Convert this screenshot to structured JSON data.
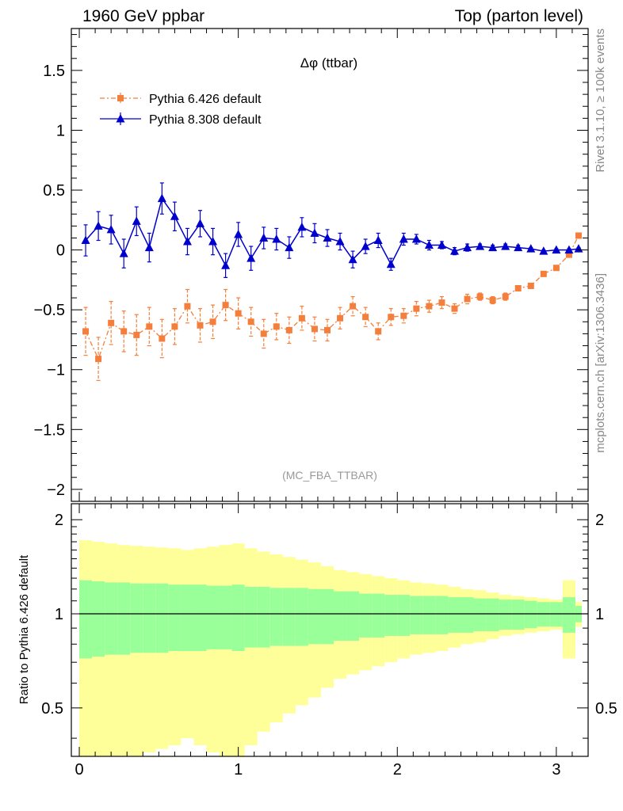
{
  "header": {
    "left": "1960 GeV ppbar",
    "right": "Top (parton level)"
  },
  "side": {
    "rivet": "Rivet 3.1.10, ≥ 100k events",
    "mcplots": "mcplots.cern.ch [arXiv:1306.3436]"
  },
  "colors": {
    "p6": "#f47f3c",
    "p8": "#0000cc",
    "band_inner": "#99ff99",
    "band_outer": "#ffff99"
  },
  "chart_data": [
    {
      "type": "line",
      "title": "Δφ (ttbar)",
      "annotation": "(MC_FBA_TTBAR)",
      "xlabel": "",
      "ylabel": "",
      "xlim": [
        -0.05,
        3.2
      ],
      "ylim": [
        -2.1,
        1.85
      ],
      "xticks": [
        "0",
        "1",
        "2",
        "3"
      ],
      "yticks": [
        "−2",
        "−1.5",
        "−1",
        "−0.5",
        "0",
        "0.5",
        "1",
        "1.5"
      ],
      "legend_position": "top-left",
      "series": [
        {
          "name": "Pythia 6.426 default",
          "color": "#f47f3c",
          "marker": "square",
          "x": [
            0.04,
            0.12,
            0.2,
            0.28,
            0.36,
            0.44,
            0.52,
            0.6,
            0.68,
            0.76,
            0.84,
            0.92,
            1.0,
            1.08,
            1.16,
            1.24,
            1.32,
            1.4,
            1.48,
            1.56,
            1.64,
            1.72,
            1.8,
            1.88,
            1.96,
            2.04,
            2.12,
            2.2,
            2.28,
            2.36,
            2.44,
            2.52,
            2.6,
            2.68,
            2.76,
            2.84,
            2.92,
            3.0,
            3.08,
            3.14
          ],
          "y": [
            -0.68,
            -0.91,
            -0.61,
            -0.68,
            -0.71,
            -0.64,
            -0.74,
            -0.64,
            -0.47,
            -0.63,
            -0.6,
            -0.46,
            -0.53,
            -0.6,
            -0.7,
            -0.64,
            -0.67,
            -0.57,
            -0.66,
            -0.67,
            -0.57,
            -0.47,
            -0.56,
            -0.68,
            -0.56,
            -0.55,
            -0.49,
            -0.47,
            -0.44,
            -0.49,
            -0.41,
            -0.39,
            -0.42,
            -0.39,
            -0.32,
            -0.3,
            -0.2,
            -0.15,
            -0.04,
            0.12
          ],
          "err": [
            0.2,
            0.18,
            0.18,
            0.17,
            0.17,
            0.16,
            0.16,
            0.15,
            0.14,
            0.14,
            0.14,
            0.13,
            0.13,
            0.12,
            0.12,
            0.11,
            0.11,
            0.1,
            0.1,
            0.09,
            0.09,
            0.08,
            0.08,
            0.07,
            0.07,
            0.06,
            0.06,
            0.05,
            0.05,
            0.04,
            0.04,
            0.03,
            0.03,
            0.03,
            0.02,
            0.02,
            0.02,
            0.02,
            0.02,
            0.02
          ]
        },
        {
          "name": "Pythia 8.308 default",
          "color": "#0000cc",
          "marker": "triangle",
          "x": [
            0.04,
            0.12,
            0.2,
            0.28,
            0.36,
            0.44,
            0.52,
            0.6,
            0.68,
            0.76,
            0.84,
            0.92,
            1.0,
            1.08,
            1.16,
            1.24,
            1.32,
            1.4,
            1.48,
            1.56,
            1.64,
            1.72,
            1.8,
            1.88,
            1.96,
            2.04,
            2.12,
            2.2,
            2.28,
            2.36,
            2.44,
            2.52,
            2.6,
            2.68,
            2.76,
            2.84,
            2.92,
            3.0,
            3.08,
            3.14
          ],
          "y": [
            0.08,
            0.2,
            0.17,
            -0.03,
            0.24,
            0.02,
            0.43,
            0.28,
            0.07,
            0.22,
            0.07,
            -0.13,
            0.13,
            -0.07,
            0.1,
            0.09,
            0.02,
            0.19,
            0.14,
            0.1,
            0.07,
            -0.08,
            0.03,
            0.08,
            -0.12,
            0.09,
            0.09,
            0.04,
            0.04,
            -0.01,
            0.02,
            0.03,
            0.02,
            0.03,
            0.02,
            0.01,
            -0.01,
            0.0,
            0.0,
            0.01
          ],
          "err": [
            0.13,
            0.12,
            0.12,
            0.12,
            0.12,
            0.12,
            0.13,
            0.12,
            0.11,
            0.11,
            0.11,
            0.1,
            0.1,
            0.1,
            0.09,
            0.09,
            0.09,
            0.08,
            0.08,
            0.07,
            0.07,
            0.07,
            0.06,
            0.06,
            0.05,
            0.05,
            0.04,
            0.04,
            0.03,
            0.03,
            0.03,
            0.02,
            0.02,
            0.02,
            0.02,
            0.01,
            0.01,
            0.01,
            0.01,
            0.01
          ]
        }
      ]
    },
    {
      "type": "area",
      "title": "",
      "xlabel": "",
      "ylabel": "Ratio to Pythia 6.426 default",
      "xlim": [
        -0.05,
        3.2
      ],
      "ylim": [
        0.35,
        2.25
      ],
      "xticks": [
        "0",
        "1",
        "2",
        "3"
      ],
      "yticks": [
        "0.5",
        "1",
        "2"
      ],
      "reference_line": 1,
      "bin_edges": [
        0.0,
        0.08,
        0.16,
        0.24,
        0.32,
        0.4,
        0.48,
        0.56,
        0.64,
        0.72,
        0.8,
        0.88,
        0.96,
        1.04,
        1.12,
        1.2,
        1.28,
        1.36,
        1.44,
        1.52,
        1.6,
        1.68,
        1.76,
        1.84,
        1.92,
        2.0,
        2.08,
        2.16,
        2.24,
        2.32,
        2.4,
        2.48,
        2.56,
        2.64,
        2.72,
        2.8,
        2.88,
        2.96,
        3.04,
        3.12,
        3.16
      ],
      "inner_band_halfwidth": [
        0.28,
        0.27,
        0.26,
        0.26,
        0.25,
        0.25,
        0.25,
        0.24,
        0.24,
        0.24,
        0.23,
        0.23,
        0.24,
        0.22,
        0.22,
        0.21,
        0.21,
        0.21,
        0.2,
        0.2,
        0.18,
        0.18,
        0.16,
        0.16,
        0.15,
        0.15,
        0.14,
        0.14,
        0.14,
        0.13,
        0.13,
        0.12,
        0.12,
        0.11,
        0.11,
        0.1,
        0.09,
        0.09,
        0.13,
        0.06
      ],
      "outer_band_halfwidth": [
        0.72,
        0.7,
        0.68,
        0.66,
        0.65,
        0.64,
        0.63,
        0.62,
        0.6,
        0.62,
        0.64,
        0.66,
        0.68,
        0.62,
        0.58,
        0.55,
        0.52,
        0.49,
        0.46,
        0.42,
        0.38,
        0.36,
        0.34,
        0.32,
        0.3,
        0.28,
        0.26,
        0.25,
        0.24,
        0.22,
        0.2,
        0.19,
        0.17,
        0.15,
        0.14,
        0.13,
        0.12,
        0.11,
        0.28,
        0.09
      ]
    }
  ]
}
